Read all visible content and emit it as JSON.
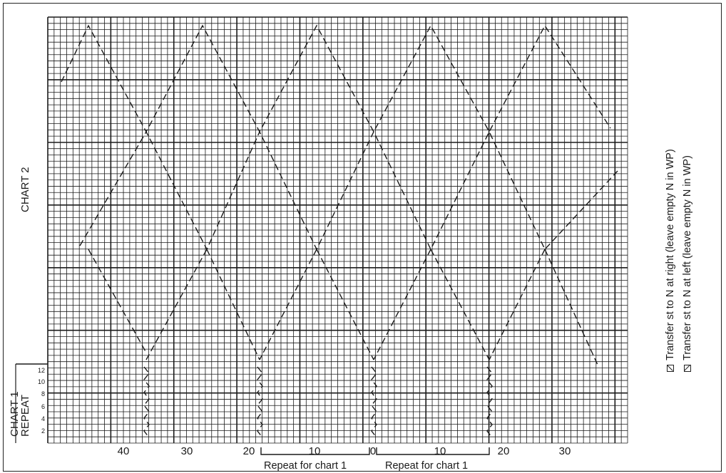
{
  "chart_title": "CHART 2",
  "chart1_label_line1": "CHART 1",
  "chart1_label_line2": "REPEAT",
  "row_numbers": [
    "2",
    "4",
    "6",
    "8",
    "10",
    "12"
  ],
  "x_axis_labels": [
    "40",
    "30",
    "20",
    "10",
    "0",
    "10",
    "20",
    "30"
  ],
  "repeat_labels": [
    "Repeat for chart 1",
    "Repeat for chart 1"
  ],
  "legend": [
    {
      "icon": "transfer-right-icon",
      "text": "Transfer st to N at right (leave empty N in WP)"
    },
    {
      "icon": "transfer-left-icon",
      "text": "Transfer st to N at left (leave empty N in WP)"
    }
  ],
  "colors": {
    "ink": "#1a1a1a",
    "paper": "#ffffff"
  }
}
